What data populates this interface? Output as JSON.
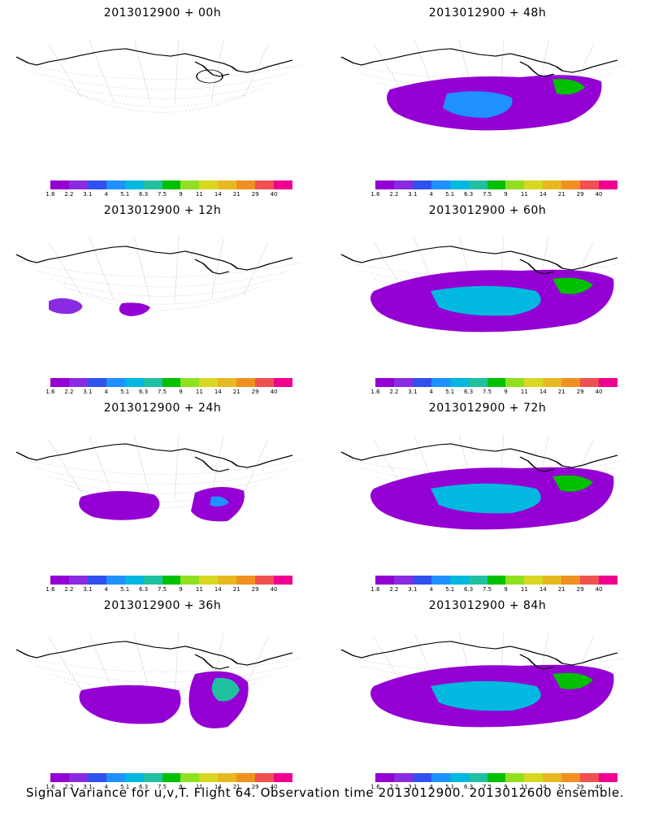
{
  "panels": [
    {
      "id": "p00",
      "title": "2013012900 + 00h",
      "level": 0
    },
    {
      "id": "p48",
      "title": "2013012900 + 48h",
      "level": 4
    },
    {
      "id": "p12",
      "title": "2013012900 + 12h",
      "level": 1
    },
    {
      "id": "p60",
      "title": "2013012900 + 60h",
      "level": 5
    },
    {
      "id": "p24",
      "title": "2013012900 + 24h",
      "level": 2
    },
    {
      "id": "p72",
      "title": "2013012900 + 72h",
      "level": 5
    },
    {
      "id": "p36",
      "title": "2013012900 + 36h",
      "level": 3
    },
    {
      "id": "p84",
      "title": "2013012900 + 84h",
      "level": 5
    }
  ],
  "colorbar": {
    "colors": [
      "#9400d3",
      "#8a2be2",
      "#3050f0",
      "#1e90ff",
      "#00b8e0",
      "#20c0a0",
      "#00c000",
      "#90e020",
      "#d8d820",
      "#e8b820",
      "#f09020",
      "#f05050",
      "#f00090"
    ],
    "ticks": [
      "1.6",
      "2.2",
      "3.1",
      "4",
      "5.1",
      "6.3",
      "7.5",
      "9",
      "11",
      "14",
      "21",
      "29",
      "40"
    ]
  },
  "caption": "Signal Variance for u,v,T. Flight 64. Observation time 2013012900. 2013012600 ensemble."
}
